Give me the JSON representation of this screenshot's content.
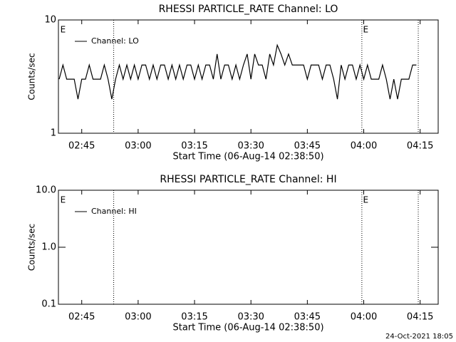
{
  "chart_data": [
    {
      "type": "line",
      "title": "RHESSI PARTICLE_RATE Channel: LO",
      "xlabel": "Start Time (06-Aug-14 02:38:50)",
      "ylabel": "Counts/sec",
      "log_y": true,
      "legend": "upper left",
      "xlim": [
        158.8,
        259.8
      ],
      "xticks": [
        {
          "value": 165,
          "label": "02:45"
        },
        {
          "value": 180,
          "label": "03:00"
        },
        {
          "value": 195,
          "label": "03:15"
        },
        {
          "value": 210,
          "label": "03:30"
        },
        {
          "value": 225,
          "label": "03:45"
        },
        {
          "value": 240,
          "label": "04:00"
        },
        {
          "value": 255,
          "label": "04:15"
        }
      ],
      "ylim": [
        1,
        10
      ],
      "yticks": [
        1,
        10
      ],
      "vlines": [
        173.5,
        239.5,
        254.5
      ],
      "annotations": [
        {
          "x": 159.3,
          "text": "E"
        },
        {
          "x": 239.8,
          "text": "E"
        }
      ],
      "x": [
        159,
        160,
        161,
        162,
        163,
        164,
        165,
        166,
        167,
        168,
        169,
        170,
        171,
        172,
        173,
        174,
        175,
        176,
        177,
        178,
        179,
        180,
        181,
        182,
        183,
        184,
        185,
        186,
        187,
        188,
        189,
        190,
        191,
        192,
        193,
        194,
        195,
        196,
        197,
        198,
        199,
        200,
        201,
        202,
        203,
        204,
        205,
        206,
        207,
        208,
        209,
        210,
        211,
        212,
        213,
        214,
        215,
        216,
        217,
        218,
        219,
        220,
        221,
        222,
        223,
        224,
        225,
        226,
        227,
        228,
        229,
        230,
        231,
        232,
        233,
        234,
        235,
        236,
        237,
        238,
        239,
        240,
        241,
        242,
        243,
        244,
        245,
        246,
        247,
        248,
        249,
        250,
        251,
        252,
        253,
        254
      ],
      "series": [
        {
          "name": "Channel: LO",
          "color": "#000000",
          "values": [
            3,
            4,
            3,
            3,
            3,
            2,
            3,
            3,
            4,
            3,
            3,
            3,
            4,
            3,
            2,
            3,
            4,
            3,
            4,
            3,
            4,
            3,
            4,
            4,
            3,
            4,
            3,
            4,
            4,
            3,
            4,
            3,
            4,
            3,
            4,
            4,
            3,
            4,
            3,
            4,
            4,
            3,
            5,
            3,
            4,
            4,
            3,
            4,
            3,
            4,
            5,
            3,
            5,
            4,
            4,
            3,
            5,
            4,
            6,
            5,
            4,
            5,
            4,
            4,
            4,
            4,
            3,
            4,
            4,
            4,
            3,
            4,
            4,
            3,
            2,
            4,
            3,
            4,
            4,
            3,
            4,
            3,
            4,
            3,
            3,
            3,
            4,
            3,
            2,
            3,
            2,
            3,
            3,
            3,
            4,
            4
          ]
        }
      ]
    },
    {
      "type": "line",
      "title": "RHESSI PARTICLE_RATE Channel: HI",
      "xlabel": "Start Time (06-Aug-14 02:38:50)",
      "ylabel": "Counts/sec",
      "log_y": true,
      "legend": "upper left",
      "xlim": [
        158.8,
        259.8
      ],
      "xticks": [
        {
          "value": 165,
          "label": "02:45"
        },
        {
          "value": 180,
          "label": "03:00"
        },
        {
          "value": 195,
          "label": "03:15"
        },
        {
          "value": 210,
          "label": "03:30"
        },
        {
          "value": 225,
          "label": "03:45"
        },
        {
          "value": 240,
          "label": "04:00"
        },
        {
          "value": 255,
          "label": "04:15"
        }
      ],
      "ylim": [
        0.1,
        10
      ],
      "yticks": [
        0.1,
        {
          "value": 1,
          "label": "1.0"
        },
        {
          "value": 10,
          "label": "10.0"
        }
      ],
      "vlines": [
        173.5,
        239.5,
        254.5
      ],
      "annotations": [
        {
          "x": 159.3,
          "text": "E"
        },
        {
          "x": 239.8,
          "text": "E"
        }
      ],
      "x": [],
      "series": [
        {
          "name": "Channel: HI",
          "color": "#000000",
          "values": []
        }
      ]
    }
  ],
  "footer": "24-Oct-2021 18:05"
}
